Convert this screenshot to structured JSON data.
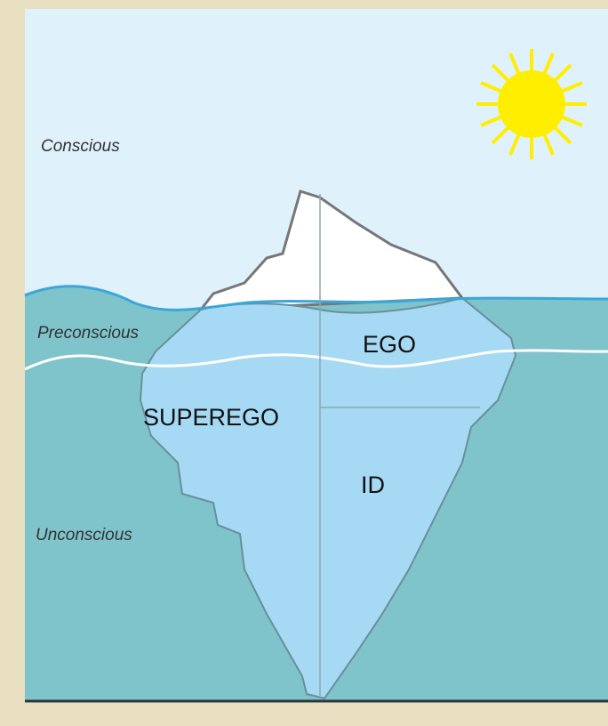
{
  "levels": {
    "conscious": "Conscious",
    "preconscious": "Preconscious",
    "unconscious": "Unconscious"
  },
  "parts": {
    "ego": "EGO",
    "superego": "SUPEREGO",
    "id": "ID"
  }
}
